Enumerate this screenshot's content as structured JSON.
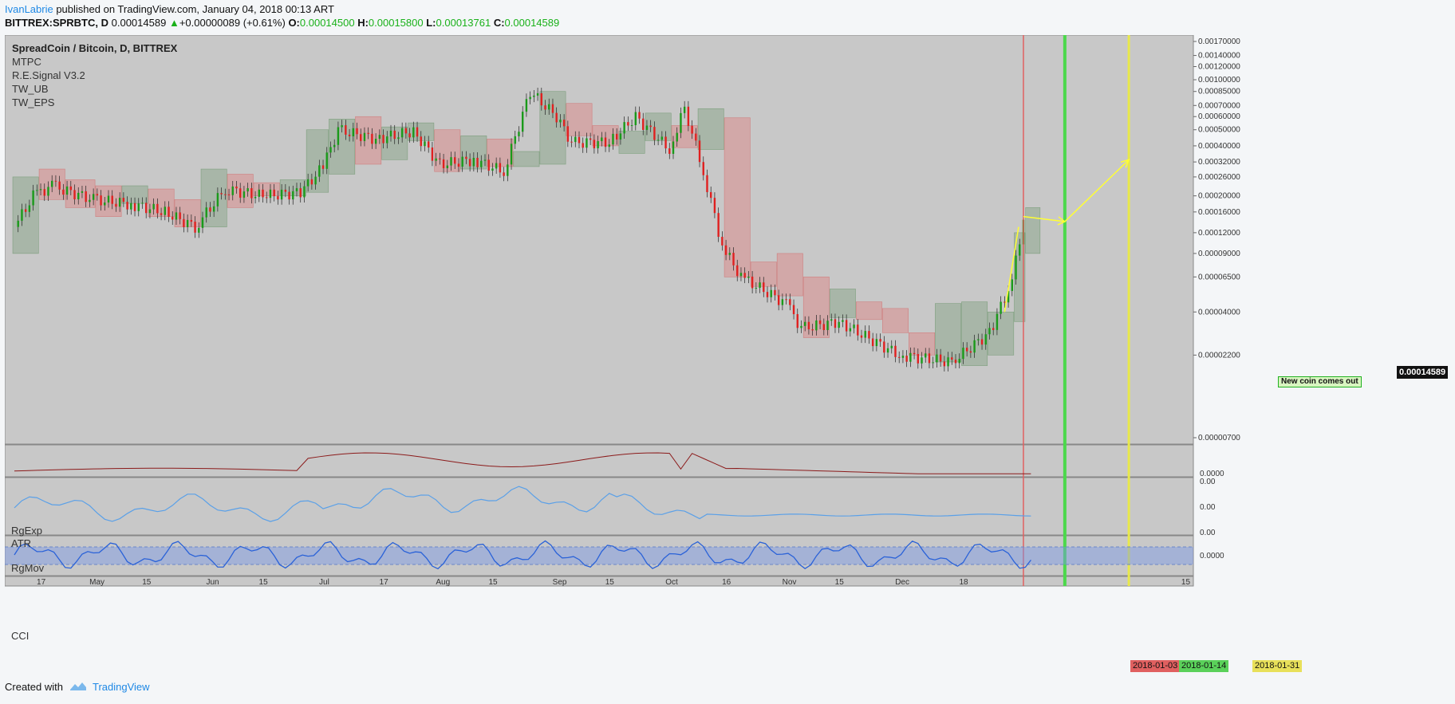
{
  "header": {
    "author": "IvanLabrie",
    "published": " published on TradingView.com, January 04, 2018 00:13 ART",
    "symbol": "BITTREX:SPRBTC, D",
    "last": "0.00014589",
    "change": "+0.00000089 (+0.61%)",
    "o_label": "O:",
    "o_value": "0.00014500",
    "h_label": "H:",
    "h_value": "0.00015800",
    "l_label": "L:",
    "l_value": "0.00013761",
    "c_label": "C:",
    "c_value": "0.00014589"
  },
  "legend": {
    "title": "SpreadCoin / Bitcoin, D, BITTREX",
    "indicators": [
      "MTPC",
      "R.E.Signal V3.2",
      "TW_UB",
      "TW_EPS"
    ]
  },
  "panes": {
    "rgexp": "RgExp",
    "atr": "ATR",
    "rgmov": "RgMov",
    "cci": "CCI"
  },
  "price_tag": "0.00014589",
  "annotation": "New coin comes out",
  "date_tags": [
    {
      "label": "2018-01-03",
      "color": "#e06060"
    },
    {
      "label": "2018-01-14",
      "color": "#5ad15a"
    },
    {
      "label": "2018-01-31",
      "color": "#e8e05a"
    }
  ],
  "footer": {
    "created": "Created with",
    "brand": "TradingView"
  },
  "colors": {
    "background": "#c8c8c8",
    "up": "#1a9a1a",
    "down": "#e02020",
    "red_line": "#e06060",
    "green_line": "#4cd84c",
    "yellow_line": "#e8e84a",
    "arrow": "#ffff33",
    "atr_line": "#8b1a1a",
    "rgmov_line": "#5aa0e8",
    "cci_line": "#2a62d8"
  },
  "chart_data": {
    "type": "candlestick",
    "title": "SpreadCoin / Bitcoin, D, BITTREX",
    "y_scale": "log",
    "price_axis_ticks": [
      "0.00170000",
      "0.00140000",
      "0.00120000",
      "0.00100000",
      "0.00085000",
      "0.00070000",
      "0.00060000",
      "0.00050000",
      "0.00040000",
      "0.00032000",
      "0.00026000",
      "0.00020000",
      "0.00016000",
      "0.00012000",
      "0.00009000",
      "0.00006500",
      "0.00004000",
      "0.00002200",
      "0.00000700"
    ],
    "time_axis_ticks": [
      "17",
      "May",
      "15",
      "Jun",
      "15",
      "Jul",
      "17",
      "Aug",
      "15",
      "Sep",
      "15",
      "Oct",
      "16",
      "Nov",
      "15",
      "Dec",
      "18",
      "2018-01-03",
      "2018-01-14",
      "2018-01-31",
      "15"
    ],
    "pane_axis_ticks": {
      "rgexp_atr": [
        "0.0000"
      ],
      "rgmov": [
        "0.00",
        "0.00",
        "0.00"
      ],
      "cci": [
        "0.0000"
      ]
    },
    "close_series_approx": [
      {
        "date": "2017-04-10",
        "close": 0.00013
      },
      {
        "date": "2017-04-15",
        "close": 0.0002
      },
      {
        "date": "2017-04-20",
        "close": 0.00023
      },
      {
        "date": "2017-05-01",
        "close": 0.00019
      },
      {
        "date": "2017-05-10",
        "close": 0.00018
      },
      {
        "date": "2017-05-20",
        "close": 0.00016
      },
      {
        "date": "2017-05-28",
        "close": 0.00013
      },
      {
        "date": "2017-06-05",
        "close": 0.00022
      },
      {
        "date": "2017-06-15",
        "close": 0.0002
      },
      {
        "date": "2017-06-25",
        "close": 0.00021
      },
      {
        "date": "2017-07-01",
        "close": 0.0003
      },
      {
        "date": "2017-07-05",
        "close": 0.0005
      },
      {
        "date": "2017-07-15",
        "close": 0.00044
      },
      {
        "date": "2017-07-25",
        "close": 0.00049
      },
      {
        "date": "2017-08-01",
        "close": 0.00031
      },
      {
        "date": "2017-08-10",
        "close": 0.00033
      },
      {
        "date": "2017-08-18",
        "close": 0.00028
      },
      {
        "date": "2017-08-25",
        "close": 0.00085
      },
      {
        "date": "2017-09-01",
        "close": 0.0006
      },
      {
        "date": "2017-09-05",
        "close": 0.00042
      },
      {
        "date": "2017-09-15",
        "close": 0.00042
      },
      {
        "date": "2017-09-22",
        "close": 0.0006
      },
      {
        "date": "2017-10-01",
        "close": 0.00038
      },
      {
        "date": "2017-10-05",
        "close": 0.00068
      },
      {
        "date": "2017-10-10",
        "close": 0.00028
      },
      {
        "date": "2017-10-15",
        "close": 0.0001
      },
      {
        "date": "2017-10-20",
        "close": 6.5e-05
      },
      {
        "date": "2017-11-01",
        "close": 4.5e-05
      },
      {
        "date": "2017-11-05",
        "close": 3.2e-05
      },
      {
        "date": "2017-11-15",
        "close": 3.5e-05
      },
      {
        "date": "2017-12-01",
        "close": 2.2e-05
      },
      {
        "date": "2017-12-15",
        "close": 2e-05
      },
      {
        "date": "2017-12-25",
        "close": 3e-05
      },
      {
        "date": "2017-12-30",
        "close": 5.5e-05
      },
      {
        "date": "2018-01-02",
        "close": 0.0001
      },
      {
        "date": "2018-01-03",
        "close": 0.00014589
      }
    ],
    "projection": [
      {
        "date": "2018-01-03",
        "value": 0.00015
      },
      {
        "date": "2018-01-14",
        "value": 0.00014
      },
      {
        "date": "2018-01-31",
        "value": 0.00033
      }
    ],
    "vertical_lines": [
      "2018-01-03",
      "2018-01-14",
      "2018-01-31"
    ]
  }
}
